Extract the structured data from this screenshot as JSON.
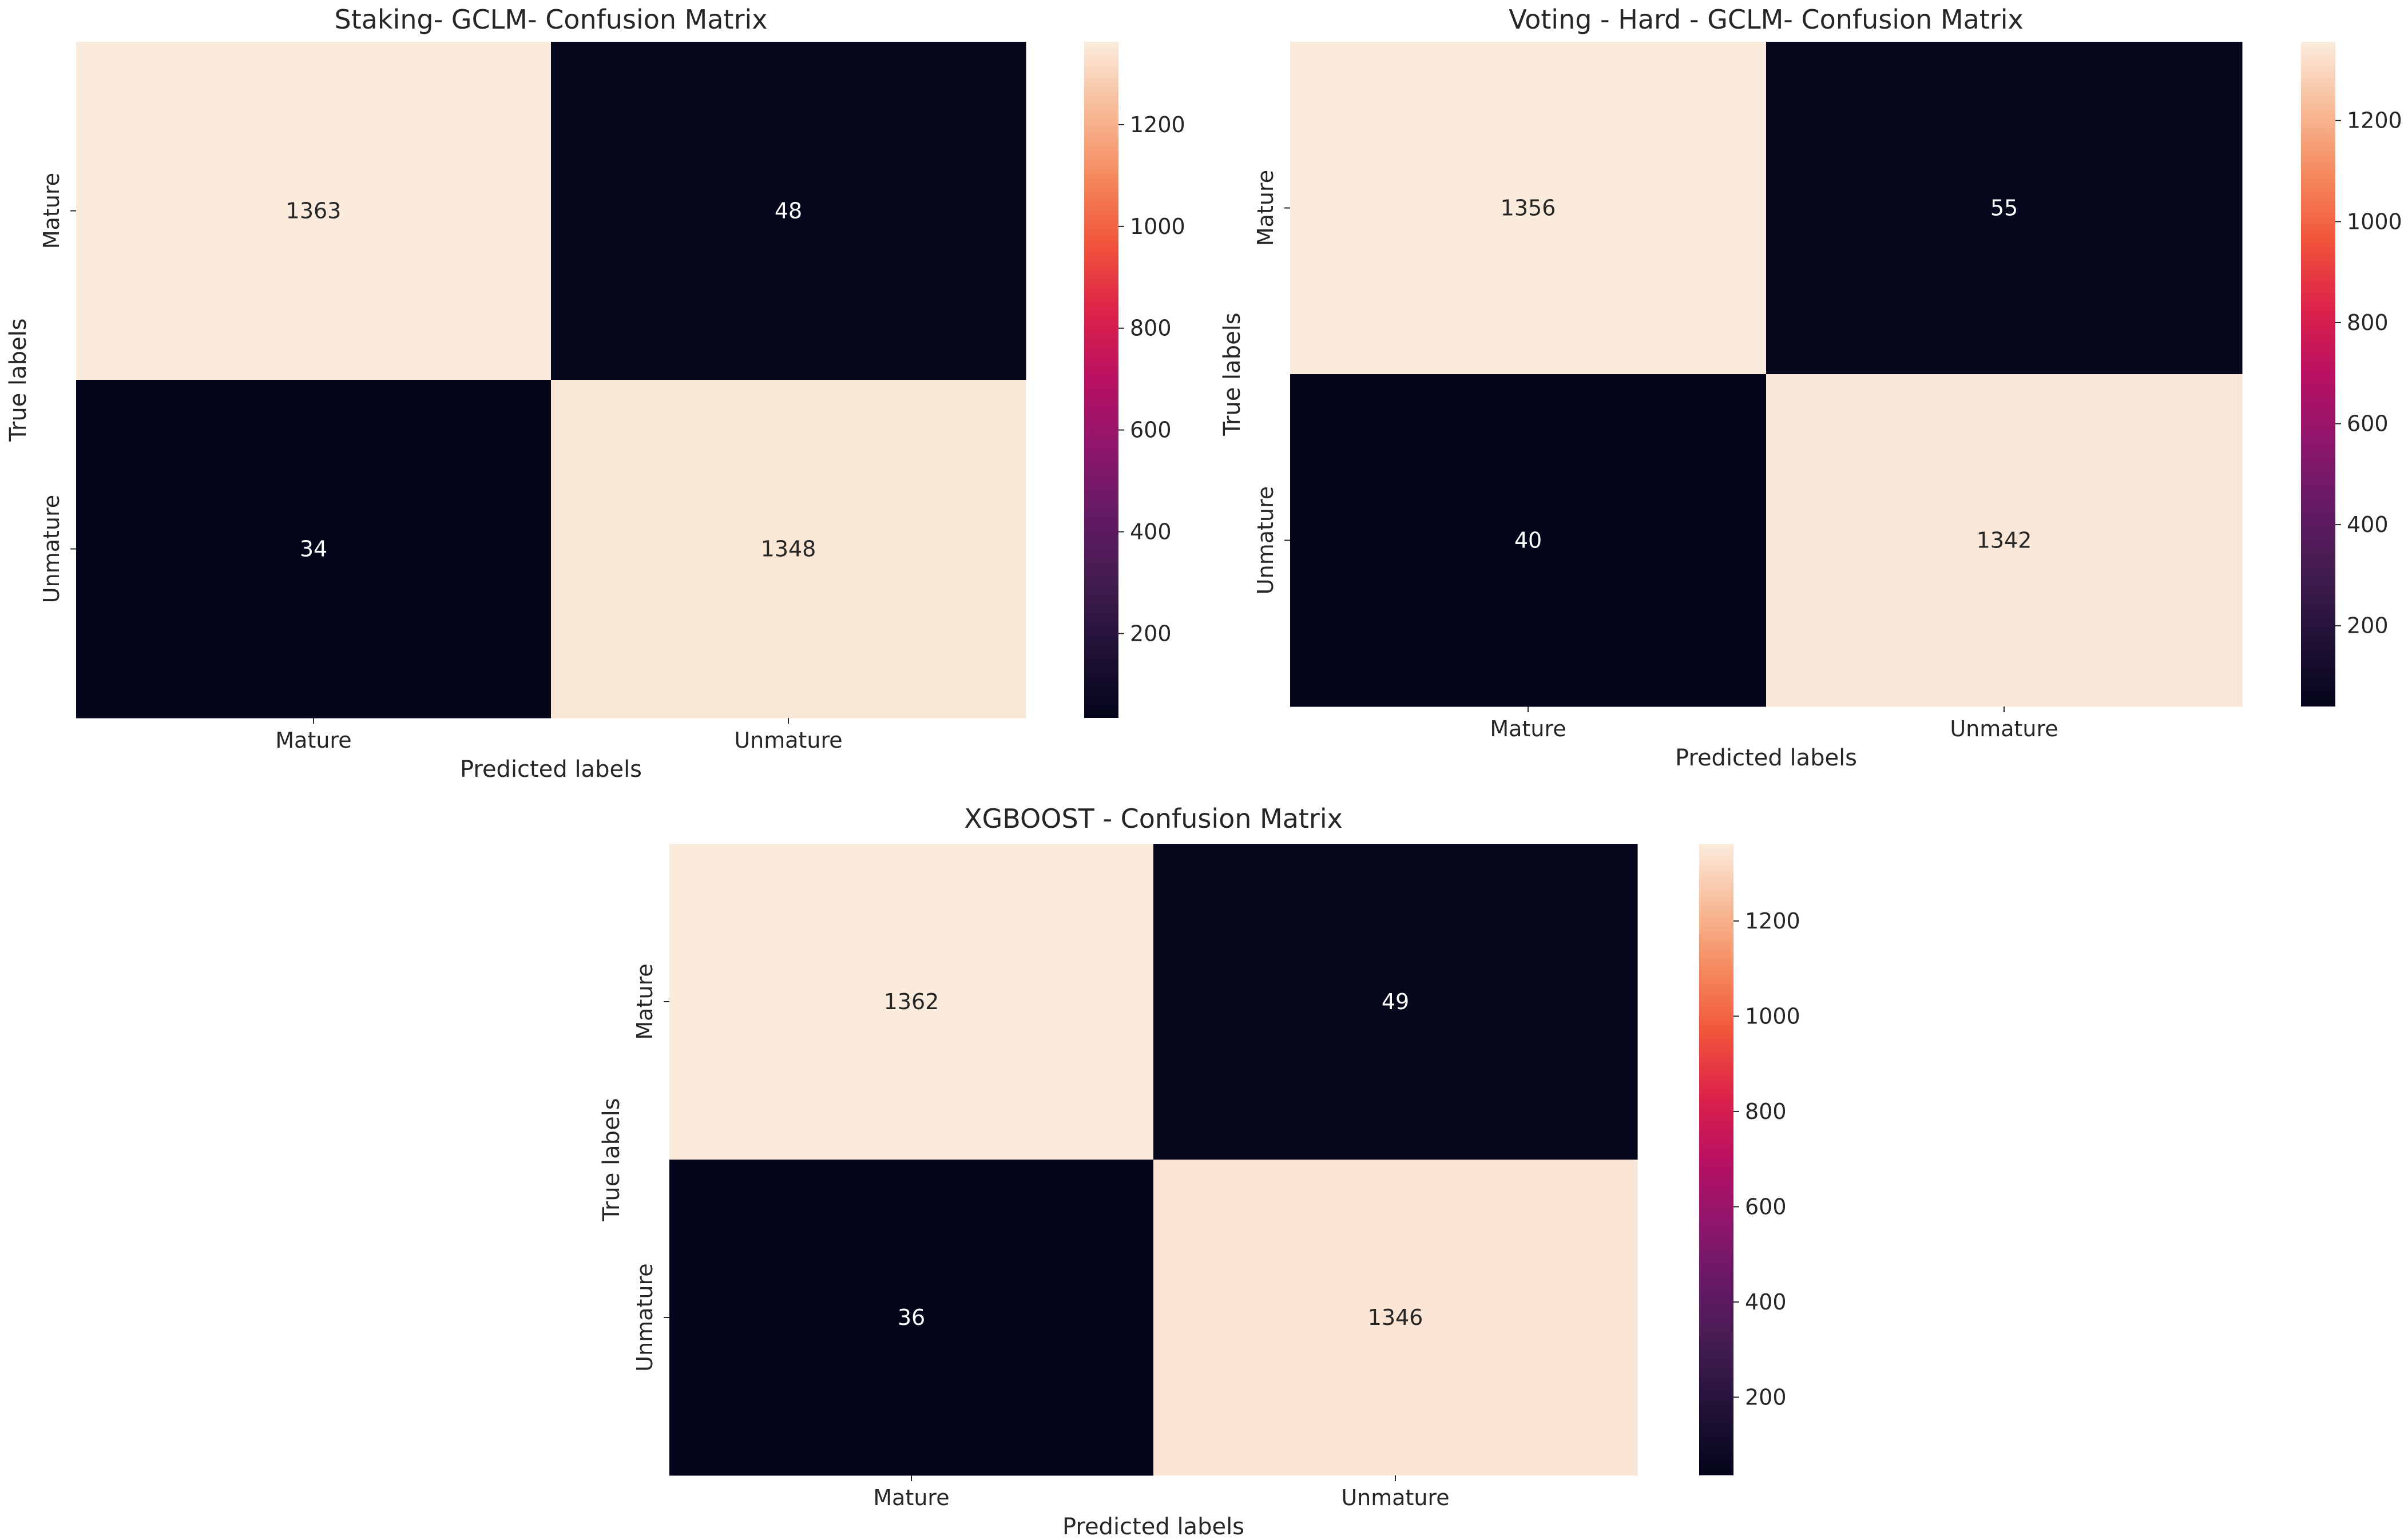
{
  "chart_data": [
    {
      "type": "heatmap",
      "title": "Staking- GCLM- Confusion Matrix",
      "xlabel": "Predicted labels",
      "ylabel": "True labels",
      "x_categories": [
        "Mature",
        "Unmature"
      ],
      "y_categories": [
        "Mature",
        "Unmature"
      ],
      "values": [
        [
          1363,
          48
        ],
        [
          34,
          1348
        ]
      ],
      "colorbar": {
        "min": 34,
        "max": 1363,
        "ticks": [
          200,
          400,
          600,
          800,
          1000,
          1200
        ],
        "colormap": "rocket"
      }
    },
    {
      "type": "heatmap",
      "title": "Voting - Hard - GCLM- Confusion Matrix",
      "xlabel": "Predicted labels",
      "ylabel": "True labels",
      "x_categories": [
        "Mature",
        "Unmature"
      ],
      "y_categories": [
        "Mature",
        "Unmature"
      ],
      "values": [
        [
          1356,
          55
        ],
        [
          40,
          1342
        ]
      ],
      "colorbar": {
        "min": 40,
        "max": 1356,
        "ticks": [
          200,
          400,
          600,
          800,
          1000,
          1200
        ],
        "colormap": "rocket"
      }
    },
    {
      "type": "heatmap",
      "title": "XGBOOST - Confusion Matrix",
      "xlabel": "Predicted labels",
      "ylabel": "True labels",
      "x_categories": [
        "Mature",
        "Unmature"
      ],
      "y_categories": [
        "Mature",
        "Unmature"
      ],
      "values": [
        [
          1362,
          49
        ],
        [
          36,
          1346
        ]
      ],
      "colorbar": {
        "min": 36,
        "max": 1362,
        "ticks": [
          200,
          400,
          600,
          800,
          1000,
          1200
        ],
        "colormap": "rocket"
      }
    }
  ]
}
